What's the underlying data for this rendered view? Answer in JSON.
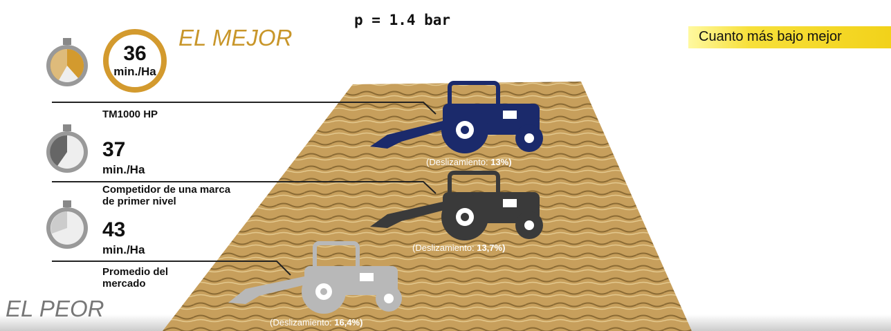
{
  "pressure": "p = 1.4 bar",
  "best_label": "EL MEJOR",
  "worst_label": "EL PEOR",
  "note": "Cuanto más bajo mejor",
  "entries": [
    {
      "time": "36",
      "unit": "min./Ha",
      "name": "TM1000 HP",
      "slip_label": "(Deslizamiento:",
      "slip": "13%)"
    },
    {
      "time": "37",
      "unit": "min./Ha",
      "name": "Competidor de una marca de primer nivel",
      "slip_label": "(Deslizamiento:",
      "slip": "13,7%)"
    },
    {
      "time": "43",
      "unit": "min./Ha",
      "name": "Promedio del mercado",
      "slip_label": "(Deslizamiento:",
      "slip": "16,4%)"
    }
  ]
}
